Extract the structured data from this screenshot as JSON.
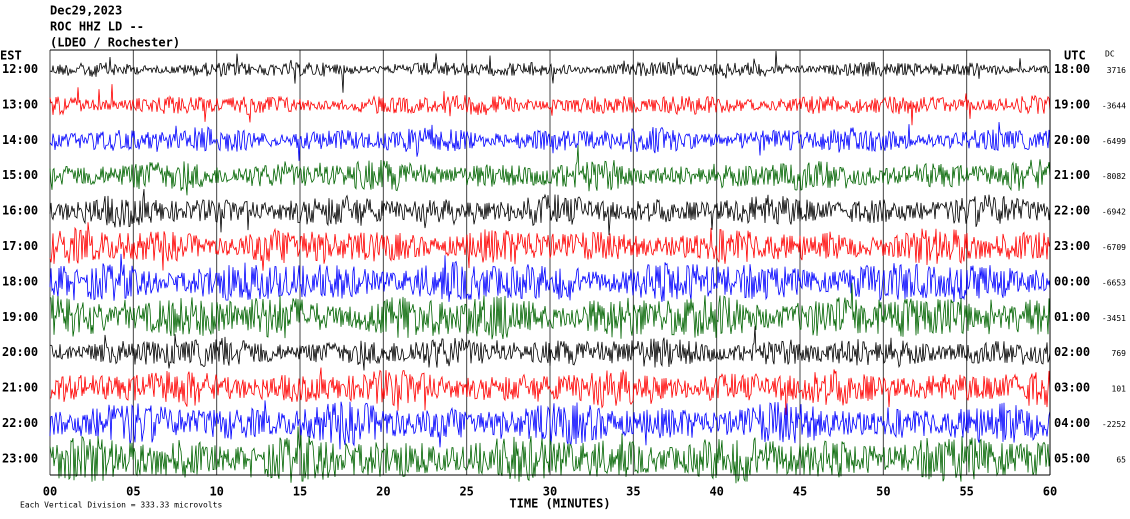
{
  "chart_data": {
    "type": "helicorder",
    "title_lines": [
      "Dec29,2023",
      "ROC HHZ LD --",
      "(LDEO / Rochester)"
    ],
    "left_axis_label": "EST",
    "right_axis_label": "UTC",
    "dc_label": "DC",
    "x_label": "TIME (MINUTES)",
    "scale_note": "Each Vertical Division =  333.33 microvolts",
    "xlim": [
      0,
      60
    ],
    "xticks": [
      {
        "value": 0,
        "label": "00"
      },
      {
        "value": 5,
        "label": "05"
      },
      10,
      15,
      20,
      25,
      30,
      35,
      40,
      45,
      50,
      55,
      60
    ],
    "grid": true,
    "rows": [
      {
        "est": "12:00",
        "utc": "18:00",
        "dc": "3716",
        "color": "#000000"
      },
      {
        "est": "13:00",
        "utc": "19:00",
        "dc": "-3644",
        "color": "#ff0000"
      },
      {
        "est": "14:00",
        "utc": "20:00",
        "dc": "-6499",
        "color": "#0000ff"
      },
      {
        "est": "15:00",
        "utc": "21:00",
        "dc": "-8082",
        "color": "#006400"
      },
      {
        "est": "16:00",
        "utc": "22:00",
        "dc": "-6942",
        "color": "#000000"
      },
      {
        "est": "17:00",
        "utc": "23:00",
        "dc": "-6709",
        "color": "#ff0000"
      },
      {
        "est": "18:00",
        "utc": "00:00",
        "dc": "-6653",
        "color": "#0000ff"
      },
      {
        "est": "19:00",
        "utc": "01:00",
        "dc": "-3451",
        "color": "#006400"
      },
      {
        "est": "20:00",
        "utc": "02:00",
        "dc": "769",
        "color": "#000000"
      },
      {
        "est": "21:00",
        "utc": "03:00",
        "dc": "101",
        "color": "#ff0000"
      },
      {
        "est": "22:00",
        "utc": "04:00",
        "dc": "-2252",
        "color": "#0000ff"
      },
      {
        "est": "23:00",
        "utc": "05:00",
        "dc": "65",
        "color": "#006400"
      }
    ]
  }
}
